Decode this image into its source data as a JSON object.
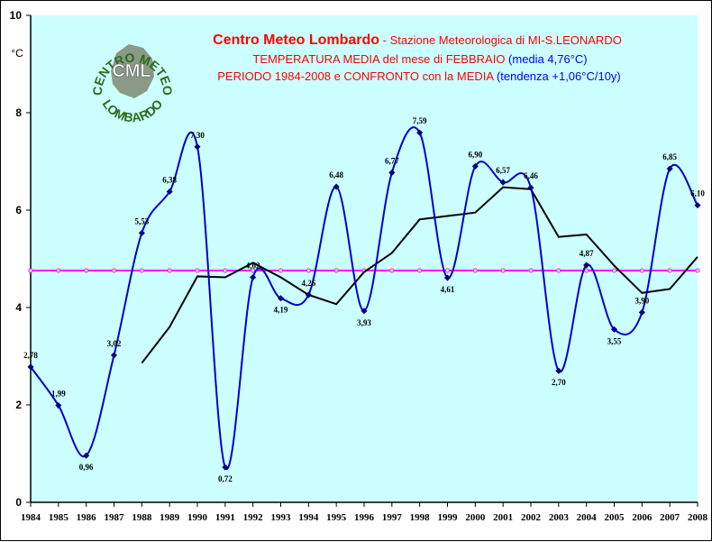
{
  "chart_data": {
    "type": "line",
    "title": "Centro Meteo Lombardo",
    "title_suffix": " - Stazione Meteorologica di MI-S.LEONARDO",
    "subtitle_line1_prefix": "TEMPERATURA MEDIA del mese di FEBBRAIO",
    "subtitle_line1_suffix": " (media 4,76°C)",
    "subtitle_line2_prefix": "PERIODO 1984-2008 e CONFRONTO con la MEDIA",
    "subtitle_line2_suffix": "  (tendenza +1,06°C/10y)",
    "ylabel": "°C",
    "ylim": [
      0,
      10
    ],
    "yticks": [
      "0",
      "2",
      "4",
      "6",
      "8",
      "10"
    ],
    "categories": [
      "1984",
      "1985",
      "1986",
      "1987",
      "1988",
      "1989",
      "1990",
      "1991",
      "1992",
      "1993",
      "1994",
      "1995",
      "1996",
      "1997",
      "1998",
      "1999",
      "2000",
      "2001",
      "2002",
      "2003",
      "2004",
      "2005",
      "2006",
      "2007",
      "2008"
    ],
    "series": [
      {
        "values": [
          2.78,
          1.99,
          0.96,
          3.02,
          5.53,
          6.38,
          7.3,
          0.72,
          4.62,
          4.19,
          4.26,
          6.48,
          3.93,
          6.77,
          7.59,
          4.61,
          6.9,
          6.57,
          6.46,
          2.7,
          4.87,
          3.55,
          3.9,
          6.85,
          6.1
        ],
        "labels": [
          "2,78",
          "1,99",
          "0,96",
          "3,02",
          "5,53",
          "6,38",
          "7,30",
          "0,72",
          "4,62",
          "4,19",
          "4,26",
          "6,48",
          "3,93",
          "6,77",
          "7,59",
          "4,61",
          "6,90",
          "6,57",
          "6,46",
          "2,70",
          "4,87",
          "3,55",
          "3,90",
          "6,85",
          "6,10"
        ],
        "color": "#0000cc"
      },
      {
        "values": [
          null,
          null,
          null,
          null,
          2.86,
          3.6,
          4.64,
          4.62,
          4.92,
          4.62,
          4.26,
          4.07,
          4.73,
          5.12,
          5.81,
          5.88,
          5.95,
          6.47,
          6.43,
          5.45,
          5.5,
          4.86,
          4.3,
          4.38,
          5.04
        ],
        "color": "#000000"
      },
      {
        "values": [
          4.76,
          4.76,
          4.76,
          4.76,
          4.76,
          4.76,
          4.76,
          4.76,
          4.76,
          4.76,
          4.76,
          4.76,
          4.76,
          4.76,
          4.76,
          4.76,
          4.76,
          4.76,
          4.76,
          4.76,
          4.76,
          4.76,
          4.76,
          4.76,
          4.76
        ],
        "color": "#ff00ff"
      }
    ],
    "grid": false,
    "legend": "none",
    "colors": {
      "background": "#ccffff",
      "title": "#ff0000",
      "subtitle": "#ff0000",
      "subtitle_accent": "#0000ff"
    }
  },
  "logo": {
    "arc_top": "CENTRO METEO",
    "arc_bottom": "LOMBARDO",
    "badge": "CML"
  }
}
